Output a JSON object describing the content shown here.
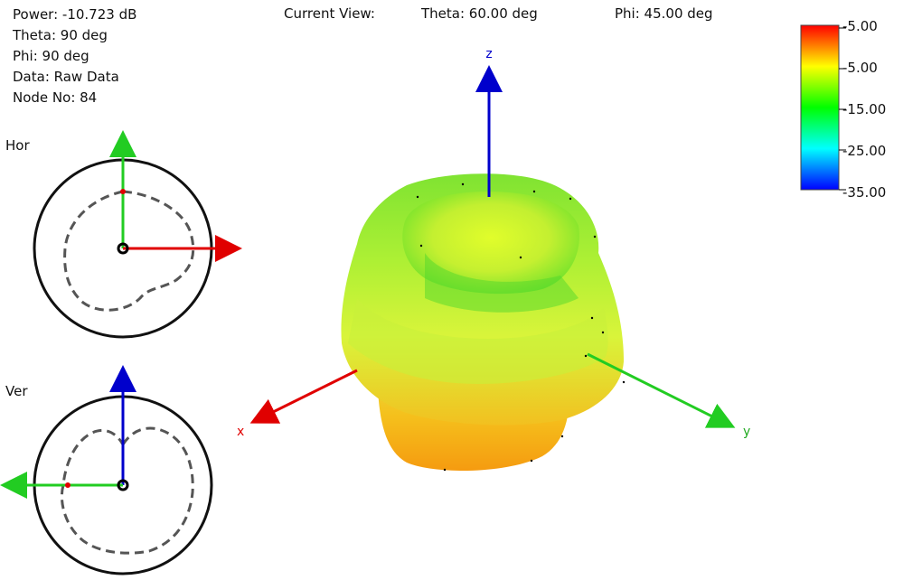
{
  "info": {
    "power": "Power: -10.723 dB",
    "theta": "Theta: 90 deg",
    "phi": "Phi: 90 deg",
    "data": "Data: Raw Data",
    "node": "Node No: 84"
  },
  "current_view": {
    "label": "Current View:",
    "theta": "Theta: 60.00 deg",
    "phi": "Phi: 45.00 deg"
  },
  "polar": {
    "hor_label": "Hor",
    "ver_label": "Ver"
  },
  "colorbar": {
    "labels": [
      "-5.00",
      "-5.00",
      "-15.00",
      "-25.00",
      "-35.00"
    ],
    "colors": [
      "#ff0000",
      "#ffff00",
      "#00ff00",
      "#00ffff",
      "#0000ff"
    ]
  },
  "axes": {
    "x": "x",
    "y": "y",
    "z": "z",
    "colors": {
      "x": "#e00000",
      "y": "#22cc22",
      "z": "#0000cc"
    }
  }
}
